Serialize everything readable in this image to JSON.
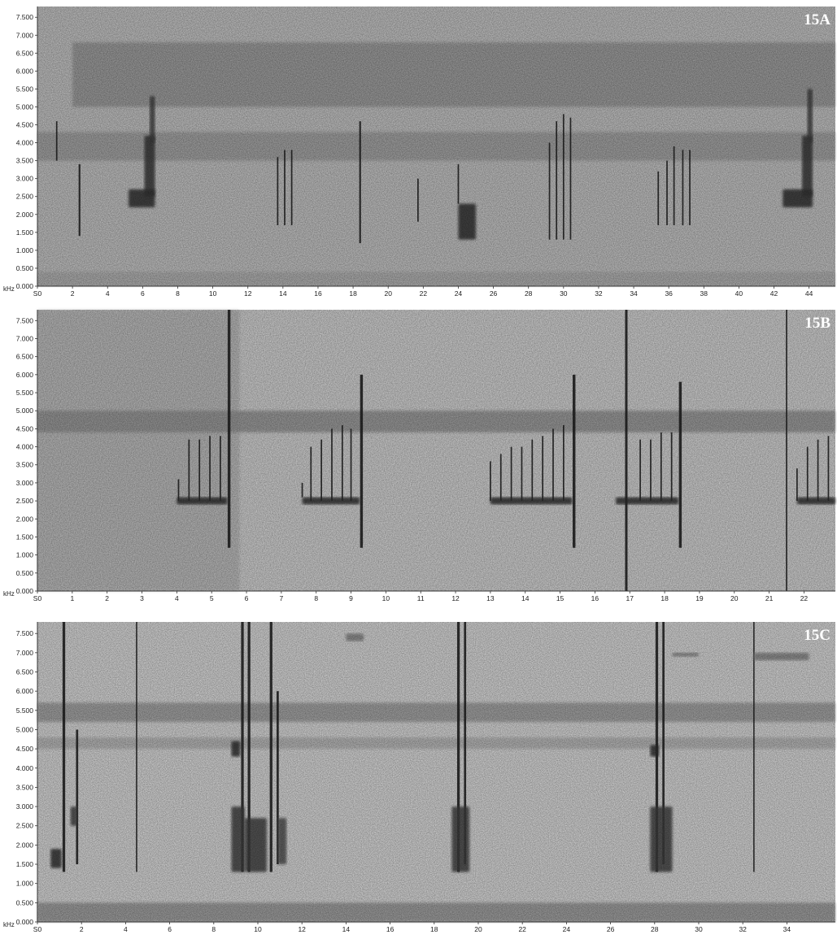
{
  "chart_data": [
    {
      "type": "spectrogram",
      "panel_label": "15A",
      "y_unit": "kHz",
      "xlim": [
        0,
        45.5
      ],
      "ylim": [
        0,
        7.8
      ],
      "x_ticks": [
        0,
        2,
        4,
        6,
        8,
        10,
        12,
        14,
        16,
        18,
        20,
        22,
        24,
        26,
        28,
        30,
        32,
        34,
        36,
        38,
        40,
        42,
        44
      ],
      "x_tick_labels": [
        "S0",
        "2",
        "4",
        "6",
        "8",
        "10",
        "12",
        "14",
        "16",
        "18",
        "20",
        "22",
        "24",
        "26",
        "28",
        "30",
        "32",
        "34",
        "36",
        "38",
        "40",
        "42",
        "44"
      ],
      "y_ticks": [
        0,
        0.5,
        1,
        1.5,
        2,
        2.5,
        3,
        3.5,
        4,
        4.5,
        5,
        5.5,
        6,
        6.5,
        7,
        7.5
      ],
      "y_tick_labels": [
        "0.000",
        "0.500",
        "1.000",
        "1.500",
        "2.000",
        "2.500",
        "3.000",
        "3.500",
        "4.000",
        "4.500",
        "5.000",
        "5.500",
        "6.000",
        "6.500",
        "7.000",
        "7.500"
      ],
      "background": "#b4b4b4",
      "bands": [
        {
          "y0": 5.0,
          "y1": 6.8,
          "x0": 2,
          "x1": 45.5,
          "color": "#6a6a6a",
          "opacity": 0.45
        },
        {
          "y0": 3.5,
          "y1": 4.3,
          "x0": 0,
          "x1": 45.5,
          "color": "#707070",
          "opacity": 0.4
        },
        {
          "y0": 0.0,
          "y1": 0.4,
          "x0": 0,
          "x1": 45.5,
          "color": "#888888",
          "opacity": 0.35
        }
      ],
      "lines": [
        {
          "x": 1.1,
          "y0": 3.5,
          "y1": 4.6,
          "w": 0.08
        },
        {
          "x": 2.4,
          "y0": 1.4,
          "y1": 3.4,
          "w": 0.1
        },
        {
          "x": 13.7,
          "y0": 1.7,
          "y1": 3.6,
          "w": 0.08
        },
        {
          "x": 14.1,
          "y0": 1.7,
          "y1": 3.8,
          "w": 0.08
        },
        {
          "x": 14.5,
          "y0": 1.7,
          "y1": 3.8,
          "w": 0.08
        },
        {
          "x": 18.4,
          "y0": 1.2,
          "y1": 4.6,
          "w": 0.1
        },
        {
          "x": 21.7,
          "y0": 1.8,
          "y1": 3.0,
          "w": 0.08
        },
        {
          "x": 24.0,
          "y0": 2.3,
          "y1": 3.4,
          "w": 0.08
        },
        {
          "x": 29.2,
          "y0": 1.3,
          "y1": 4.0,
          "w": 0.08
        },
        {
          "x": 29.6,
          "y0": 1.3,
          "y1": 4.6,
          "w": 0.08
        },
        {
          "x": 30.0,
          "y0": 1.3,
          "y1": 4.8,
          "w": 0.08
        },
        {
          "x": 30.4,
          "y0": 1.3,
          "y1": 4.7,
          "w": 0.08
        },
        {
          "x": 35.4,
          "y0": 1.7,
          "y1": 3.2,
          "w": 0.08
        },
        {
          "x": 35.9,
          "y0": 1.7,
          "y1": 3.5,
          "w": 0.08
        },
        {
          "x": 36.3,
          "y0": 1.7,
          "y1": 3.9,
          "w": 0.08
        },
        {
          "x": 36.8,
          "y0": 1.7,
          "y1": 3.8,
          "w": 0.08
        },
        {
          "x": 37.2,
          "y0": 1.7,
          "y1": 3.8,
          "w": 0.08
        }
      ],
      "blobs": [
        {
          "x0": 5.2,
          "x1": 6.7,
          "y0": 2.2,
          "y1": 2.7,
          "color": "#2a2a2a"
        },
        {
          "x0": 6.1,
          "x1": 6.7,
          "y0": 2.5,
          "y1": 4.2,
          "color": "#333333"
        },
        {
          "x0": 6.4,
          "x1": 6.7,
          "y0": 4.0,
          "y1": 5.3,
          "color": "#3a3a3a"
        },
        {
          "x0": 24.0,
          "x1": 25.0,
          "y0": 1.3,
          "y1": 2.3,
          "color": "#2a2a2a"
        },
        {
          "x0": 42.5,
          "x1": 44.2,
          "y0": 2.2,
          "y1": 2.7,
          "color": "#2a2a2a"
        },
        {
          "x0": 43.6,
          "x1": 44.2,
          "y0": 2.5,
          "y1": 4.2,
          "color": "#333333"
        },
        {
          "x0": 43.9,
          "x1": 44.2,
          "y0": 4.0,
          "y1": 5.5,
          "color": "#3a3a3a"
        }
      ]
    },
    {
      "type": "spectrogram",
      "panel_label": "15B",
      "y_unit": "kHz",
      "xlim": [
        0,
        22.9
      ],
      "ylim": [
        0,
        7.8
      ],
      "x_ticks": [
        0,
        1,
        2,
        3,
        4,
        5,
        6,
        7,
        8,
        9,
        10,
        11,
        12,
        13,
        14,
        15,
        16,
        17,
        18,
        19,
        20,
        21,
        22
      ],
      "x_tick_labels": [
        "S0",
        "1",
        "2",
        "3",
        "4",
        "5",
        "6",
        "7",
        "8",
        "9",
        "10",
        "11",
        "12",
        "13",
        "14",
        "15",
        "16",
        "17",
        "18",
        "19",
        "20",
        "21",
        "22"
      ],
      "y_ticks": [
        0,
        0.5,
        1,
        1.5,
        2,
        2.5,
        3,
        3.5,
        4,
        4.5,
        5,
        5.5,
        6,
        6.5,
        7,
        7.5
      ],
      "y_tick_labels": [
        "0.000",
        "0.500",
        "1.000",
        "1.500",
        "2.000",
        "2.500",
        "3.000",
        "3.500",
        "4.000",
        "4.500",
        "5.000",
        "5.500",
        "6.000",
        "6.500",
        "7.000",
        "7.500"
      ],
      "background": "#c2c2c2",
      "bands": [
        {
          "y0": 4.4,
          "y1": 5.0,
          "x0": 0,
          "x1": 22.9,
          "color": "#6a6a6a",
          "opacity": 0.55
        },
        {
          "y0": 0.0,
          "y1": 7.8,
          "x0": 0,
          "x1": 5.8,
          "color": "#8a8a8a",
          "opacity": 0.35
        }
      ],
      "lines": [
        {
          "x": 4.05,
          "y0": 2.5,
          "y1": 3.1,
          "w": 0.04
        },
        {
          "x": 4.35,
          "y0": 2.5,
          "y1": 4.2,
          "w": 0.04
        },
        {
          "x": 4.65,
          "y0": 2.5,
          "y1": 4.2,
          "w": 0.04
        },
        {
          "x": 4.95,
          "y0": 2.5,
          "y1": 4.3,
          "w": 0.04
        },
        {
          "x": 5.25,
          "y0": 2.5,
          "y1": 4.3,
          "w": 0.04
        },
        {
          "x": 5.5,
          "y0": 1.2,
          "y1": 7.8,
          "w": 0.08
        },
        {
          "x": 7.6,
          "y0": 2.6,
          "y1": 3.0,
          "w": 0.04
        },
        {
          "x": 7.85,
          "y0": 2.5,
          "y1": 4.0,
          "w": 0.04
        },
        {
          "x": 8.15,
          "y0": 2.5,
          "y1": 4.2,
          "w": 0.04
        },
        {
          "x": 8.45,
          "y0": 2.5,
          "y1": 4.5,
          "w": 0.04
        },
        {
          "x": 8.75,
          "y0": 2.5,
          "y1": 4.6,
          "w": 0.04
        },
        {
          "x": 9.0,
          "y0": 2.5,
          "y1": 4.5,
          "w": 0.04
        },
        {
          "x": 9.3,
          "y0": 1.2,
          "y1": 6.0,
          "w": 0.08
        },
        {
          "x": 13.0,
          "y0": 2.5,
          "y1": 3.6,
          "w": 0.04
        },
        {
          "x": 13.3,
          "y0": 2.5,
          "y1": 3.8,
          "w": 0.04
        },
        {
          "x": 13.6,
          "y0": 2.5,
          "y1": 4.0,
          "w": 0.04
        },
        {
          "x": 13.9,
          "y0": 2.5,
          "y1": 4.0,
          "w": 0.04
        },
        {
          "x": 14.2,
          "y0": 2.5,
          "y1": 4.2,
          "w": 0.04
        },
        {
          "x": 14.5,
          "y0": 2.5,
          "y1": 4.3,
          "w": 0.04
        },
        {
          "x": 14.8,
          "y0": 2.5,
          "y1": 4.5,
          "w": 0.04
        },
        {
          "x": 15.1,
          "y0": 2.5,
          "y1": 4.6,
          "w": 0.04
        },
        {
          "x": 15.4,
          "y0": 1.2,
          "y1": 6.0,
          "w": 0.08
        },
        {
          "x": 16.9,
          "y0": 0.0,
          "y1": 7.8,
          "w": 0.07
        },
        {
          "x": 17.3,
          "y0": 2.5,
          "y1": 4.2,
          "w": 0.04
        },
        {
          "x": 17.6,
          "y0": 2.5,
          "y1": 4.2,
          "w": 0.04
        },
        {
          "x": 17.9,
          "y0": 2.5,
          "y1": 4.4,
          "w": 0.04
        },
        {
          "x": 18.2,
          "y0": 2.5,
          "y1": 4.4,
          "w": 0.04
        },
        {
          "x": 18.45,
          "y0": 1.2,
          "y1": 5.8,
          "w": 0.08
        },
        {
          "x": 21.5,
          "y0": 0.0,
          "y1": 7.8,
          "w": 0.04
        },
        {
          "x": 21.8,
          "y0": 2.5,
          "y1": 3.4,
          "w": 0.04
        },
        {
          "x": 22.1,
          "y0": 2.5,
          "y1": 4.0,
          "w": 0.04
        },
        {
          "x": 22.4,
          "y0": 2.5,
          "y1": 4.2,
          "w": 0.04
        },
        {
          "x": 22.7,
          "y0": 2.5,
          "y1": 4.3,
          "w": 0.04
        }
      ],
      "blobs": [
        {
          "x0": 4.0,
          "x1": 5.45,
          "y0": 2.4,
          "y1": 2.6,
          "color": "#2a2a2a"
        },
        {
          "x0": 7.6,
          "x1": 9.25,
          "y0": 2.4,
          "y1": 2.6,
          "color": "#2a2a2a"
        },
        {
          "x0": 13.0,
          "x1": 15.35,
          "y0": 2.4,
          "y1": 2.6,
          "color": "#2a2a2a"
        },
        {
          "x0": 16.6,
          "x1": 18.4,
          "y0": 2.4,
          "y1": 2.6,
          "color": "#2a2a2a"
        },
        {
          "x0": 21.8,
          "x1": 22.9,
          "y0": 2.4,
          "y1": 2.6,
          "color": "#2a2a2a"
        }
      ]
    },
    {
      "type": "spectrogram",
      "panel_label": "15C",
      "y_unit": "kHz",
      "xlim": [
        0,
        36.2
      ],
      "ylim": [
        0,
        7.8
      ],
      "x_ticks": [
        0,
        2,
        4,
        6,
        8,
        10,
        12,
        14,
        16,
        18,
        20,
        22,
        24,
        26,
        28,
        30,
        32,
        34
      ],
      "x_tick_labels": [
        "S0",
        "2",
        "4",
        "6",
        "8",
        "10",
        "12",
        "14",
        "16",
        "18",
        "20",
        "22",
        "24",
        "26",
        "28",
        "30",
        "32",
        "34"
      ],
      "y_ticks": [
        0,
        0.5,
        1,
        1.5,
        2,
        2.5,
        3,
        3.5,
        4,
        4.5,
        5,
        5.5,
        6,
        6.5,
        7,
        7.5
      ],
      "y_tick_labels": [
        "0.000",
        "0.500",
        "1.000",
        "1.500",
        "2.000",
        "2.500",
        "3.000",
        "3.500",
        "4.000",
        "4.500",
        "5.000",
        "5.500",
        "6.000",
        "6.500",
        "7.000",
        "7.500"
      ],
      "background": "#c8c8c8",
      "bands": [
        {
          "y0": 5.2,
          "y1": 5.7,
          "x0": 0,
          "x1": 36.2,
          "color": "#6a6a6a",
          "opacity": 0.5
        },
        {
          "y0": 4.5,
          "y1": 4.8,
          "x0": 0,
          "x1": 36.2,
          "color": "#8a8a8a",
          "opacity": 0.45
        },
        {
          "y0": 0.0,
          "y1": 0.5,
          "x0": 0,
          "x1": 36.2,
          "color": "#6a6a6a",
          "opacity": 0.55
        }
      ],
      "lines": [
        {
          "x": 1.2,
          "y0": 1.3,
          "y1": 7.8,
          "w": 0.12
        },
        {
          "x": 1.8,
          "y0": 1.5,
          "y1": 5.0,
          "w": 0.1
        },
        {
          "x": 4.5,
          "y0": 1.3,
          "y1": 7.8,
          "w": 0.06
        },
        {
          "x": 9.3,
          "y0": 1.3,
          "y1": 7.8,
          "w": 0.12
        },
        {
          "x": 9.6,
          "y0": 1.3,
          "y1": 7.8,
          "w": 0.12
        },
        {
          "x": 10.6,
          "y0": 1.3,
          "y1": 7.8,
          "w": 0.12
        },
        {
          "x": 10.9,
          "y0": 1.5,
          "y1": 6.0,
          "w": 0.1
        },
        {
          "x": 19.1,
          "y0": 1.3,
          "y1": 7.8,
          "w": 0.12
        },
        {
          "x": 19.4,
          "y0": 1.5,
          "y1": 7.8,
          "w": 0.1
        },
        {
          "x": 28.1,
          "y0": 1.3,
          "y1": 7.8,
          "w": 0.12
        },
        {
          "x": 28.4,
          "y0": 1.5,
          "y1": 7.8,
          "w": 0.1
        },
        {
          "x": 32.5,
          "y0": 1.3,
          "y1": 7.8,
          "w": 0.05
        }
      ],
      "blobs": [
        {
          "x0": 0.6,
          "x1": 1.1,
          "y0": 1.4,
          "y1": 1.9,
          "color": "#2a2a2a"
        },
        {
          "x0": 1.5,
          "x1": 1.8,
          "y0": 2.5,
          "y1": 3.0,
          "color": "#3a3a3a"
        },
        {
          "x0": 8.8,
          "x1": 9.4,
          "y0": 1.3,
          "y1": 3.0,
          "color": "#3a3a3a"
        },
        {
          "x0": 8.8,
          "x1": 9.2,
          "y0": 4.3,
          "y1": 4.7,
          "color": "#2a2a2a"
        },
        {
          "x0": 9.4,
          "x1": 10.4,
          "y0": 1.3,
          "y1": 2.7,
          "color": "#3a3a3a"
        },
        {
          "x0": 10.9,
          "x1": 11.3,
          "y0": 1.5,
          "y1": 2.7,
          "color": "#4a4a4a"
        },
        {
          "x0": 18.8,
          "x1": 19.6,
          "y0": 1.3,
          "y1": 3.0,
          "color": "#3a3a3a"
        },
        {
          "x0": 27.8,
          "x1": 28.8,
          "y0": 1.3,
          "y1": 3.0,
          "color": "#3a3a3a"
        },
        {
          "x0": 27.8,
          "x1": 28.2,
          "y0": 4.3,
          "y1": 4.6,
          "color": "#2a2a2a"
        },
        {
          "x0": 14.0,
          "x1": 14.8,
          "y0": 7.3,
          "y1": 7.5,
          "color": "#7a7a7a"
        },
        {
          "x0": 28.8,
          "x1": 30.0,
          "y0": 6.9,
          "y1": 7.0,
          "color": "#7a7a7a"
        },
        {
          "x0": 32.5,
          "x1": 35.0,
          "y0": 6.8,
          "y1": 7.0,
          "color": "#7a7a7a"
        }
      ]
    }
  ]
}
